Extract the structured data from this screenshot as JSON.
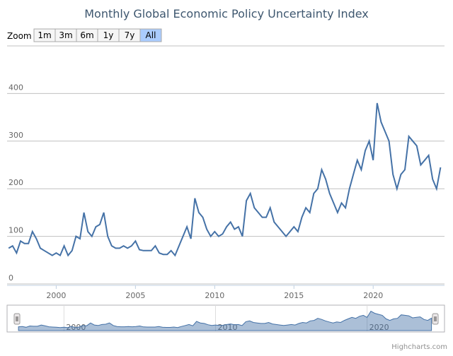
{
  "chart_data": {
    "type": "line",
    "title": "Monthly Global Economic Policy Uncertainty Index",
    "range_selector": {
      "label": "Zoom",
      "buttons": [
        "1m",
        "3m",
        "6m",
        "1y",
        "7y",
        "All"
      ]
    },
    "credits": "Highcharts.com",
    "x": [
      1997,
      1997.25,
      1997.5,
      1997.75,
      1998,
      1998.25,
      1998.5,
      1998.75,
      1999,
      1999.25,
      1999.5,
      1999.75,
      2000,
      2000.25,
      2000.5,
      2000.75,
      2001,
      2001.25,
      2001.5,
      2001.75,
      2002,
      2002.25,
      2002.5,
      2002.75,
      2003,
      2003.25,
      2003.5,
      2003.75,
      2004,
      2004.25,
      2004.5,
      2004.75,
      2005,
      2005.25,
      2005.5,
      2005.75,
      2006,
      2006.25,
      2006.5,
      2006.75,
      2007,
      2007.25,
      2007.5,
      2007.75,
      2008,
      2008.25,
      2008.5,
      2008.75,
      2009,
      2009.25,
      2009.5,
      2009.75,
      2010,
      2010.25,
      2010.5,
      2010.75,
      2011,
      2011.25,
      2011.5,
      2011.75,
      2012,
      2012.25,
      2012.5,
      2012.75,
      2013,
      2013.25,
      2013.5,
      2013.75,
      2014,
      2014.25,
      2014.5,
      2014.75,
      2015,
      2015.25,
      2015.5,
      2015.75,
      2016,
      2016.25,
      2016.5,
      2016.75,
      2017,
      2017.25,
      2017.5,
      2017.75,
      2018,
      2018.25,
      2018.5,
      2018.75,
      2019,
      2019.25,
      2019.5,
      2019.75,
      2020,
      2020.25,
      2020.5,
      2020.75,
      2021,
      2021.25,
      2021.5,
      2021.75,
      2022,
      2022.25,
      2022.5,
      2022.75,
      2023,
      2023.25,
      2023.5,
      2023.75,
      2024,
      2024.25
    ],
    "series": [
      {
        "color": "#4572a7",
        "values": [
          75,
          80,
          65,
          90,
          85,
          85,
          110,
          95,
          75,
          70,
          65,
          60,
          65,
          60,
          80,
          60,
          70,
          100,
          95,
          150,
          110,
          100,
          120,
          125,
          150,
          100,
          80,
          75,
          75,
          80,
          75,
          80,
          90,
          72,
          70,
          70,
          70,
          80,
          65,
          62,
          62,
          70,
          60,
          80,
          100,
          120,
          95,
          180,
          150,
          140,
          115,
          100,
          110,
          100,
          105,
          120,
          130,
          115,
          120,
          100,
          175,
          190,
          160,
          150,
          140,
          140,
          160,
          130,
          120,
          110,
          100,
          110,
          120,
          110,
          140,
          160,
          150,
          190,
          200,
          240,
          220,
          190,
          170,
          150,
          170,
          160,
          200,
          230,
          260,
          240,
          280,
          300,
          260,
          380,
          340,
          320,
          300,
          230,
          200,
          230,
          240,
          310,
          300,
          290,
          250,
          260,
          270,
          220,
          200,
          245
        ]
      }
    ],
    "xlim": [
      1996.9,
      2024.5
    ],
    "xticks": [
      2000,
      2005,
      2010,
      2015,
      2020
    ],
    "ylim": [
      0,
      500
    ],
    "yticks": [
      0,
      100,
      200,
      300,
      400
    ],
    "grid": true,
    "navigator_xticks": [
      2000,
      2010,
      2020
    ]
  }
}
